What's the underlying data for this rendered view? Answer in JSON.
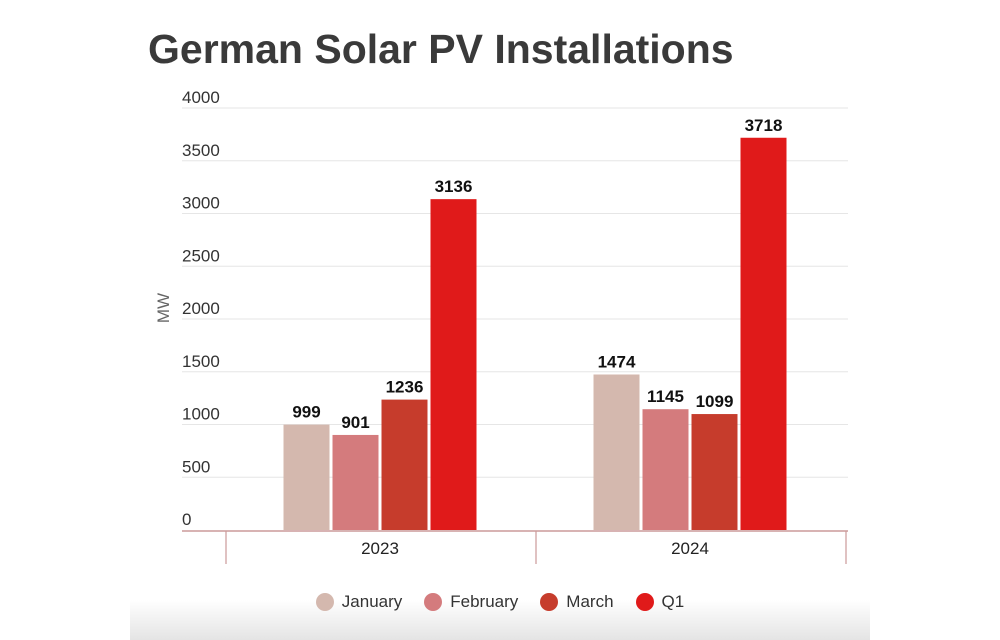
{
  "chart_data": {
    "type": "bar",
    "title": "German Solar PV Installations",
    "ylabel": "MW",
    "xlabel": "",
    "categories": [
      "2023",
      "2024"
    ],
    "series": [
      {
        "name": "January",
        "color": "#d4b8ae",
        "values": [
          999,
          1474
        ]
      },
      {
        "name": "February",
        "color": "#d47b7d",
        "values": [
          901,
          1145
        ]
      },
      {
        "name": "March",
        "color": "#c63c2c",
        "values": [
          1236,
          1099
        ]
      },
      {
        "name": "Q1",
        "color": "#e01a1a",
        "values": [
          3136,
          3718
        ]
      }
    ],
    "ylim": [
      0,
      4000
    ],
    "yticks": [
      0,
      500,
      1000,
      1500,
      2000,
      2500,
      3000,
      3500,
      4000
    ],
    "data_labels": true,
    "grid": true,
    "legend_position": "bottom"
  }
}
